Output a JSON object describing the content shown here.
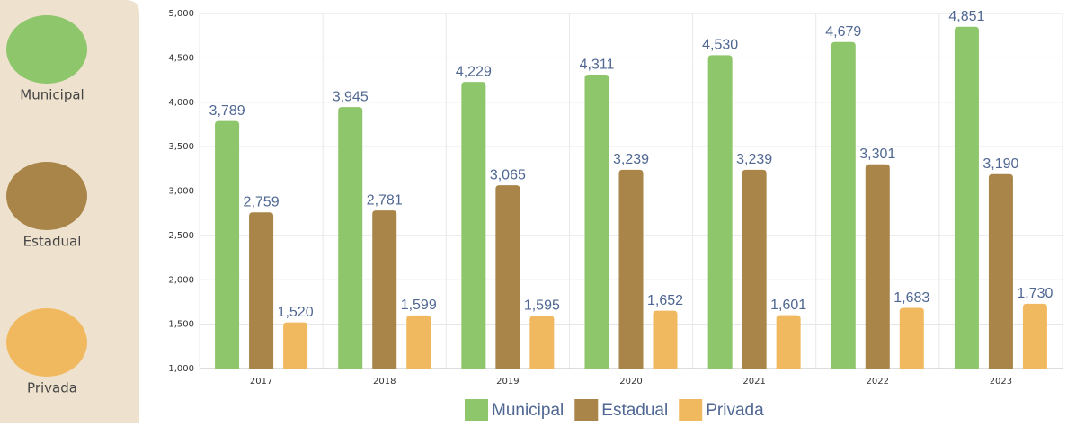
{
  "chart_data": {
    "type": "bar",
    "categories": [
      "2017",
      "2018",
      "2019",
      "2020",
      "2021",
      "2022",
      "2023"
    ],
    "series": [
      {
        "name": "Municipal",
        "color": "#8dc66b",
        "values": [
          3789,
          3945,
          4229,
          4311,
          4530,
          4679,
          4851
        ],
        "value_labels": [
          "3,789",
          "3,945",
          "4,229",
          "4,311",
          "4,530",
          "4,679",
          "4,851"
        ]
      },
      {
        "name": "Estadual",
        "color": "#a9854a",
        "values": [
          2759,
          2781,
          3065,
          3239,
          3239,
          3301,
          3190
        ],
        "value_labels": [
          "2,759",
          "2,781",
          "3,065",
          "3,239",
          "3,239",
          "3,301",
          "3,190"
        ]
      },
      {
        "name": "Privada",
        "color": "#f1b95f",
        "values": [
          1520,
          1599,
          1595,
          1652,
          1601,
          1683,
          1730
        ],
        "value_labels": [
          "1,520",
          "1,599",
          "1,595",
          "1,652",
          "1,601",
          "1,683",
          "1,730"
        ]
      }
    ],
    "ylim": [
      1000,
      5000
    ],
    "yticks": [
      {
        "value": 1000,
        "label": "1,000"
      },
      {
        "value": 1500,
        "label": "1,500"
      },
      {
        "value": 2000,
        "label": "2,000"
      },
      {
        "value": 2500,
        "label": "2,500"
      },
      {
        "value": 3000,
        "label": "3,000"
      },
      {
        "value": 3500,
        "label": "3,500"
      },
      {
        "value": 4000,
        "label": "4,000"
      },
      {
        "value": 4500,
        "label": "4,500"
      },
      {
        "value": 5000,
        "label": "5,000"
      }
    ],
    "grid": true,
    "legend": "bottom"
  }
}
